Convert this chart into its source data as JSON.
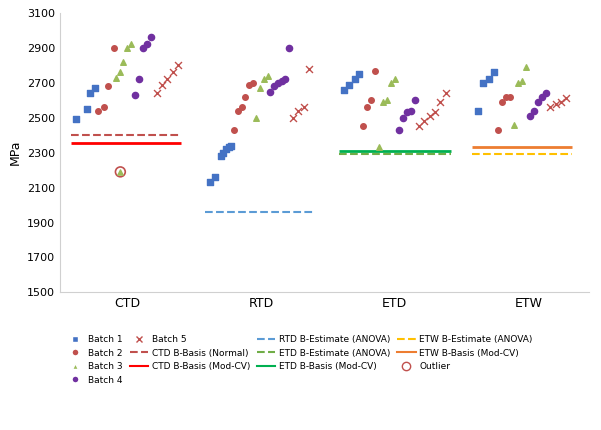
{
  "ylabel": "MPa",
  "ylim": [
    1500,
    3100
  ],
  "yticks": [
    1500,
    1700,
    1900,
    2100,
    2300,
    2500,
    2700,
    2900,
    3100
  ],
  "conditions": [
    "CTD",
    "RTD",
    "ETD",
    "ETW"
  ],
  "colors": {
    "batch1": "#4472C4",
    "batch2": "#C0504D",
    "batch3": "#9BBB59",
    "batch4": "#7030A0",
    "batch5_x": "#C0504D",
    "ctd_normal": "#C0504D",
    "ctd_modcv": "#FF0000",
    "rtd_anova": "#5B9BD5",
    "etd_anova": "#70AD47",
    "etd_modcv": "#00B050",
    "etw_anova": "#FFC000",
    "etw_modcv": "#ED7D31",
    "outlier_edge": "#C0504D"
  },
  "scatter": {
    "CTD": {
      "batch1": {
        "x": [
          0.72,
          0.8,
          0.82,
          0.86
        ],
        "y": [
          2490,
          2550,
          2640,
          2670
        ]
      },
      "batch2": {
        "x": [
          0.88,
          0.93,
          0.96,
          1.0
        ],
        "y": [
          2540,
          2560,
          2680,
          2900
        ]
      },
      "batch3": {
        "x": [
          1.02,
          1.05,
          1.07,
          1.1,
          1.13
        ],
        "y": [
          2730,
          2760,
          2820,
          2900,
          2920
        ]
      },
      "batch4": {
        "x": [
          1.16,
          1.19,
          1.22,
          1.25,
          1.28
        ],
        "y": [
          2630,
          2720,
          2900,
          2920,
          2960
        ]
      },
      "batch5": {
        "x": [
          1.32,
          1.36,
          1.4,
          1.44,
          1.48
        ],
        "y": [
          2640,
          2690,
          2720,
          2760,
          2800
        ]
      },
      "outlier": {
        "x": [
          1.05
        ],
        "y": [
          2190
        ]
      }
    },
    "RTD": {
      "batch1": {
        "x": [
          1.72,
          1.76,
          1.8,
          1.82,
          1.84,
          1.86,
          1.88
        ],
        "y": [
          2130,
          2160,
          2280,
          2300,
          2320,
          2330,
          2340
        ]
      },
      "batch2": {
        "x": [
          1.9,
          1.93,
          1.96,
          1.98,
          2.01,
          2.04
        ],
        "y": [
          2430,
          2540,
          2560,
          2620,
          2690,
          2700
        ]
      },
      "batch3": {
        "x": [
          2.06,
          2.09,
          2.12,
          2.15
        ],
        "y": [
          2500,
          2670,
          2720,
          2740
        ]
      },
      "batch4": {
        "x": [
          2.17,
          2.2,
          2.23,
          2.26,
          2.28,
          2.31
        ],
        "y": [
          2650,
          2680,
          2700,
          2710,
          2720,
          2900
        ]
      },
      "batch5": {
        "x": [
          2.34,
          2.38,
          2.42,
          2.46
        ],
        "y": [
          2500,
          2540,
          2560,
          2780
        ]
      }
    },
    "ETD": {
      "batch1": {
        "x": [
          2.72,
          2.76,
          2.8,
          2.83
        ],
        "y": [
          2660,
          2690,
          2720,
          2750
        ]
      },
      "batch2": {
        "x": [
          2.86,
          2.89,
          2.92,
          2.95
        ],
        "y": [
          2450,
          2560,
          2600,
          2770
        ]
      },
      "batch3": {
        "x": [
          2.98,
          3.01,
          3.04,
          3.07,
          3.1
        ],
        "y": [
          2330,
          2590,
          2600,
          2700,
          2720
        ]
      },
      "batch4": {
        "x": [
          3.13,
          3.16,
          3.19,
          3.22,
          3.25
        ],
        "y": [
          2430,
          2500,
          2530,
          2540,
          2600
        ]
      },
      "batch5": {
        "x": [
          3.28,
          3.32,
          3.36,
          3.4,
          3.44,
          3.48
        ],
        "y": [
          2450,
          2480,
          2510,
          2530,
          2590,
          2640
        ]
      }
    },
    "ETW": {
      "batch1": {
        "x": [
          3.72,
          3.76,
          3.8,
          3.84
        ],
        "y": [
          2540,
          2700,
          2720,
          2760
        ]
      },
      "batch2": {
        "x": [
          3.87,
          3.9,
          3.93,
          3.96
        ],
        "y": [
          2430,
          2590,
          2620,
          2620
        ]
      },
      "batch3": {
        "x": [
          3.99,
          4.02,
          4.05,
          4.08
        ],
        "y": [
          2460,
          2700,
          2710,
          2790
        ]
      },
      "batch4": {
        "x": [
          4.11,
          4.14,
          4.17,
          4.2,
          4.23
        ],
        "y": [
          2510,
          2540,
          2590,
          2620,
          2640
        ]
      },
      "batch5": {
        "x": [
          4.26,
          4.3,
          4.34,
          4.38
        ],
        "y": [
          2560,
          2580,
          2590,
          2610
        ]
      }
    }
  },
  "hlines": {
    "CTD_normal": {
      "y": 2400,
      "xmin": 0.68,
      "xmax": 1.5,
      "color": "#C0504D",
      "linestyle": "--",
      "lw": 1.5
    },
    "CTD_modcv": {
      "y": 2355,
      "xmin": 0.68,
      "xmax": 1.5,
      "color": "#FF0000",
      "linestyle": "-",
      "lw": 2.0
    },
    "RTD_anova": {
      "y": 1960,
      "xmin": 1.68,
      "xmax": 2.5,
      "color": "#5B9BD5",
      "linestyle": "--",
      "lw": 1.5
    },
    "ETD_anova": {
      "y": 2295,
      "xmin": 2.68,
      "xmax": 3.52,
      "color": "#70AD47",
      "linestyle": "--",
      "lw": 1.5
    },
    "ETD_modcv": {
      "y": 2310,
      "xmin": 2.68,
      "xmax": 3.52,
      "color": "#00B050",
      "linestyle": "-",
      "lw": 2.0
    },
    "ETW_anova": {
      "y": 2295,
      "xmin": 3.68,
      "xmax": 4.42,
      "color": "#FFC000",
      "linestyle": "--",
      "lw": 1.5
    },
    "ETW_modcv": {
      "y": 2330,
      "xmin": 3.68,
      "xmax": 4.42,
      "color": "#ED7D31",
      "linestyle": "-",
      "lw": 2.0
    }
  },
  "legend": [
    {
      "type": "marker",
      "marker": "s",
      "color": "#4472C4",
      "label": "Batch 1"
    },
    {
      "type": "marker",
      "marker": "o",
      "color": "#C0504D",
      "label": "Batch 2"
    },
    {
      "type": "marker",
      "marker": "^",
      "color": "#9BBB59",
      "label": "Batch 3"
    },
    {
      "type": "marker",
      "marker": "o",
      "color": "#7030A0",
      "label": "Batch 4"
    },
    {
      "type": "marker",
      "marker": "x",
      "color": "#C0504D",
      "label": "Batch 5"
    },
    {
      "type": "line",
      "linestyle": "--",
      "color": "#C0504D",
      "label": "CTD B-Basis (Normal)"
    },
    {
      "type": "line",
      "linestyle": "-",
      "color": "#FF0000",
      "label": "CTD B-Basis (Mod-CV)"
    },
    {
      "type": "line",
      "linestyle": "--",
      "color": "#5B9BD5",
      "label": "RTD B-Estimate (ANOVA)"
    },
    {
      "type": "line",
      "linestyle": "--",
      "color": "#70AD47",
      "label": "ETD B-Estimate (ANOVA)"
    },
    {
      "type": "line",
      "linestyle": "-",
      "color": "#00B050",
      "label": "ETD B-Basis (Mod-CV)"
    },
    {
      "type": "line",
      "linestyle": "--",
      "color": "#FFC000",
      "label": "ETW B-Estimate (ANOVA)"
    },
    {
      "type": "line",
      "linestyle": "-",
      "color": "#ED7D31",
      "label": "ETW B-Basis (Mod-CV)"
    },
    {
      "type": "outlier",
      "label": "Outlier"
    }
  ]
}
